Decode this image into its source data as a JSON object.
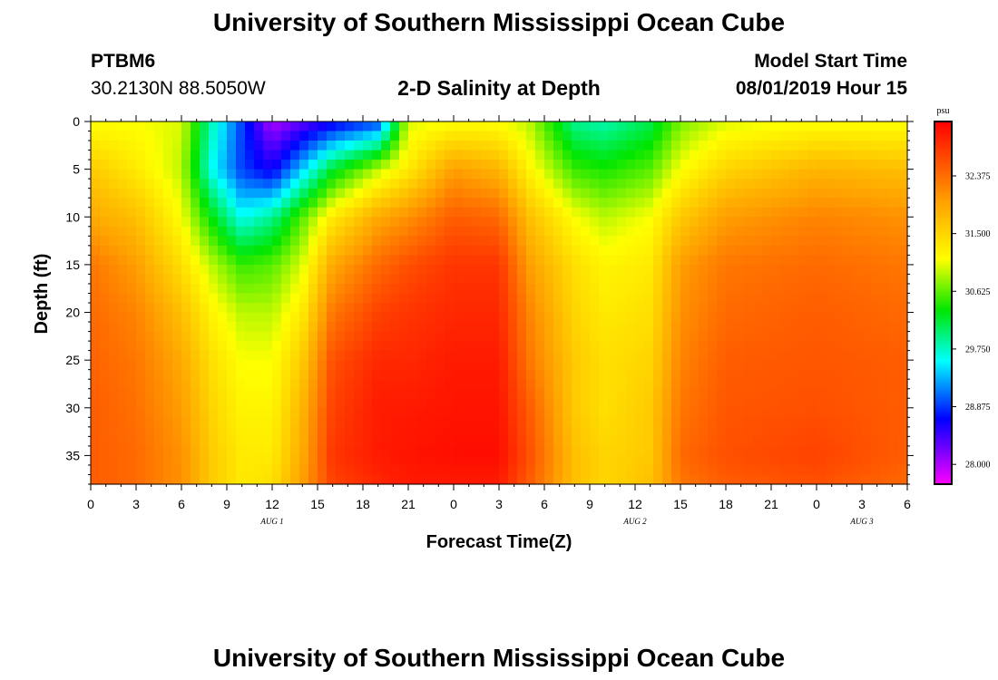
{
  "header": {
    "title_top": "University of Southern Mississippi Ocean Cube",
    "station": "PTBM6",
    "coords": "30.2130N 88.5050W",
    "subtitle": "2-D Salinity at Depth",
    "model_label": "Model Start Time",
    "model_time": "08/01/2019 Hour 15"
  },
  "footer": {
    "title_bottom": "University of Southern Mississippi Ocean Cube"
  },
  "chart_data": {
    "type": "heatmap",
    "title": "2-D Salinity at Depth",
    "xlabel": "Forecast Time(Z)",
    "ylabel": "Depth (ft)",
    "x_tick_labels": [
      "0",
      "3",
      "6",
      "9",
      "12",
      "15",
      "18",
      "21",
      "0",
      "3",
      "6",
      "9",
      "12",
      "15",
      "18",
      "21",
      "0",
      "3",
      "6"
    ],
    "date_labels": [
      {
        "label": "AUG 1",
        "at_hours_from_start": 12
      },
      {
        "label": "AUG 2",
        "at_hours_from_start": 36
      },
      {
        "label": "AUG 3",
        "at_hours_from_start": 51
      }
    ],
    "xlim_hours": [
      0,
      54
    ],
    "y_ticks": [
      0,
      5,
      10,
      15,
      20,
      25,
      30,
      35
    ],
    "ylim": [
      0,
      38
    ],
    "colorbar": {
      "unit": "psu",
      "ticks": [
        "32.375",
        "31.500",
        "30.625",
        "29.750",
        "28.875",
        "28.000"
      ],
      "range": [
        27.7,
        33.2
      ]
    },
    "salinity_profile_keyframes": {
      "depths_ft": [
        0,
        5,
        10,
        15,
        20,
        25,
        30,
        35,
        38
      ],
      "profiles": [
        {
          "hour": 0,
          "values": [
            31.1,
            31.6,
            31.9,
            32.3,
            32.4,
            32.45,
            32.5,
            32.5,
            32.5
          ]
        },
        {
          "hour": 3,
          "values": [
            31.1,
            31.3,
            31.7,
            32.0,
            32.2,
            32.3,
            32.35,
            32.4,
            32.4
          ]
        },
        {
          "hour": 6,
          "values": [
            31.0,
            30.9,
            31.1,
            31.4,
            31.7,
            31.9,
            32.0,
            32.1,
            32.1
          ]
        },
        {
          "hour": 8,
          "values": [
            29.8,
            29.6,
            30.3,
            30.9,
            31.2,
            31.4,
            31.5,
            31.6,
            31.6
          ]
        },
        {
          "hour": 10,
          "values": [
            28.9,
            28.9,
            29.6,
            30.5,
            30.9,
            31.1,
            31.2,
            31.3,
            31.3
          ]
        },
        {
          "hour": 12,
          "values": [
            28.0,
            28.6,
            29.9,
            30.6,
            30.9,
            31.1,
            31.2,
            31.3,
            31.4
          ]
        },
        {
          "hour": 14,
          "values": [
            28.3,
            29.4,
            30.6,
            31.0,
            31.3,
            31.6,
            31.8,
            31.9,
            32.0
          ]
        },
        {
          "hour": 16,
          "values": [
            28.6,
            30.2,
            31.3,
            31.9,
            32.3,
            32.6,
            32.7,
            32.8,
            32.7
          ]
        },
        {
          "hour": 19,
          "values": [
            28.9,
            30.9,
            31.9,
            32.4,
            32.7,
            32.9,
            33.0,
            33.0,
            32.9
          ]
        },
        {
          "hour": 21,
          "values": [
            31.0,
            31.3,
            32.1,
            32.6,
            32.8,
            32.9,
            33.0,
            33.05,
            33.0
          ]
        },
        {
          "hour": 24,
          "values": [
            31.1,
            32.0,
            32.5,
            32.8,
            32.9,
            33.0,
            33.05,
            33.1,
            33.0
          ]
        },
        {
          "hour": 27,
          "values": [
            31.1,
            31.8,
            32.4,
            32.8,
            32.9,
            33.0,
            33.05,
            33.1,
            33.0
          ]
        },
        {
          "hour": 29,
          "values": [
            30.9,
            31.2,
            31.7,
            32.0,
            32.2,
            32.3,
            32.5,
            32.6,
            32.5
          ]
        },
        {
          "hour": 32,
          "values": [
            29.9,
            30.5,
            31.1,
            31.4,
            31.5,
            31.6,
            31.6,
            31.7,
            31.7
          ]
        },
        {
          "hour": 34,
          "values": [
            29.8,
            30.4,
            30.9,
            31.2,
            31.3,
            31.4,
            31.4,
            31.5,
            31.5
          ]
        },
        {
          "hour": 37,
          "values": [
            30.1,
            30.6,
            31.1,
            31.3,
            31.4,
            31.5,
            31.6,
            31.6,
            31.7
          ]
        },
        {
          "hour": 39,
          "values": [
            30.7,
            31.1,
            31.6,
            32.0,
            32.1,
            32.2,
            32.3,
            32.4,
            32.3
          ]
        },
        {
          "hour": 42,
          "values": [
            31.0,
            31.5,
            32.0,
            32.3,
            32.4,
            32.5,
            32.55,
            32.6,
            32.5
          ]
        },
        {
          "hour": 48,
          "values": [
            31.1,
            31.8,
            32.2,
            32.4,
            32.5,
            32.55,
            32.6,
            32.7,
            32.6
          ]
        },
        {
          "hour": 54,
          "values": [
            31.1,
            31.7,
            32.1,
            32.3,
            32.4,
            32.5,
            32.5,
            32.5,
            32.4
          ]
        }
      ]
    }
  }
}
